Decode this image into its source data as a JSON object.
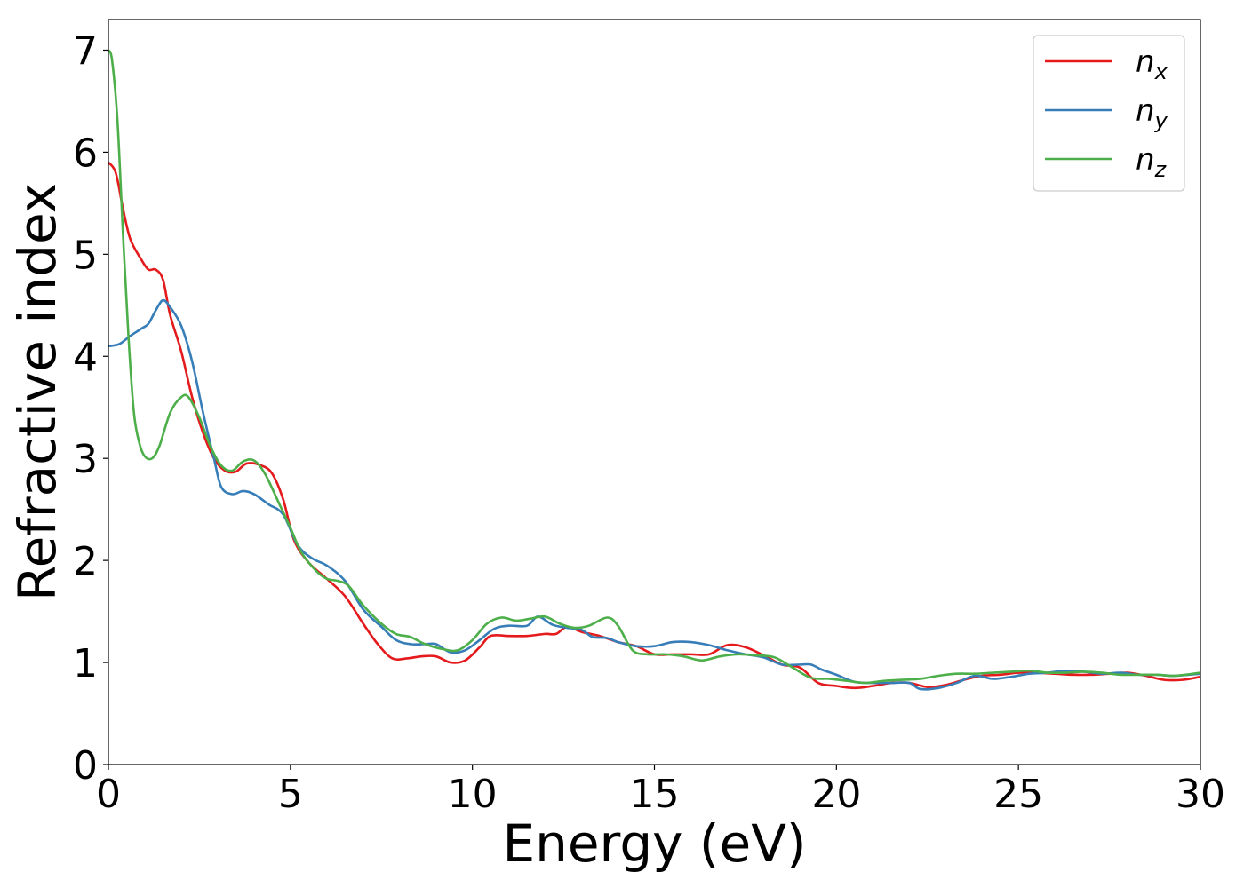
{
  "chart_data": {
    "type": "line",
    "xlabel": "Energy (eV)",
    "ylabel": "Refractive index",
    "xlim": [
      0,
      30
    ],
    "ylim": [
      0,
      7.3
    ],
    "xticks": [
      0,
      5,
      10,
      15,
      20,
      25,
      30
    ],
    "yticks": [
      0,
      1,
      2,
      3,
      4,
      5,
      6,
      7
    ],
    "grid": false,
    "legend_position": "top-right",
    "series": [
      {
        "name": "n_x",
        "label_base": "n",
        "label_sub": "x",
        "color": "#e41a1c",
        "points": [
          [
            0,
            5.9
          ],
          [
            0.2,
            5.8
          ],
          [
            0.4,
            5.45
          ],
          [
            0.6,
            5.15
          ],
          [
            0.9,
            4.95
          ],
          [
            1.1,
            4.85
          ],
          [
            1.3,
            4.85
          ],
          [
            1.5,
            4.75
          ],
          [
            1.7,
            4.4
          ],
          [
            2.0,
            4.05
          ],
          [
            2.3,
            3.6
          ],
          [
            2.6,
            3.25
          ],
          [
            2.9,
            3.0
          ],
          [
            3.2,
            2.88
          ],
          [
            3.5,
            2.87
          ],
          [
            3.8,
            2.95
          ],
          [
            4.2,
            2.93
          ],
          [
            4.5,
            2.85
          ],
          [
            4.8,
            2.6
          ],
          [
            5.1,
            2.2
          ],
          [
            5.5,
            1.98
          ],
          [
            6.0,
            1.82
          ],
          [
            6.5,
            1.65
          ],
          [
            7.0,
            1.38
          ],
          [
            7.4,
            1.18
          ],
          [
            7.8,
            1.04
          ],
          [
            8.2,
            1.04
          ],
          [
            8.6,
            1.06
          ],
          [
            9.0,
            1.06
          ],
          [
            9.4,
            1.0
          ],
          [
            9.8,
            1.02
          ],
          [
            10.2,
            1.15
          ],
          [
            10.5,
            1.26
          ],
          [
            11.0,
            1.26
          ],
          [
            11.5,
            1.26
          ],
          [
            12.0,
            1.28
          ],
          [
            12.3,
            1.28
          ],
          [
            12.6,
            1.35
          ],
          [
            13.0,
            1.3
          ],
          [
            13.5,
            1.26
          ],
          [
            14.0,
            1.2
          ],
          [
            14.5,
            1.16
          ],
          [
            15.0,
            1.08
          ],
          [
            15.5,
            1.08
          ],
          [
            16.0,
            1.08
          ],
          [
            16.5,
            1.08
          ],
          [
            17.0,
            1.17
          ],
          [
            17.5,
            1.15
          ],
          [
            18.0,
            1.07
          ],
          [
            18.5,
            0.98
          ],
          [
            19.0,
            0.95
          ],
          [
            19.5,
            0.8
          ],
          [
            20.0,
            0.77
          ],
          [
            20.5,
            0.75
          ],
          [
            21.0,
            0.77
          ],
          [
            21.5,
            0.8
          ],
          [
            22.0,
            0.8
          ],
          [
            22.5,
            0.76
          ],
          [
            23.0,
            0.78
          ],
          [
            23.5,
            0.83
          ],
          [
            24.0,
            0.87
          ],
          [
            24.5,
            0.88
          ],
          [
            25.0,
            0.9
          ],
          [
            25.5,
            0.9
          ],
          [
            26.0,
            0.89
          ],
          [
            26.5,
            0.88
          ],
          [
            27.0,
            0.88
          ],
          [
            27.5,
            0.89
          ],
          [
            28.0,
            0.9
          ],
          [
            28.5,
            0.87
          ],
          [
            29.0,
            0.83
          ],
          [
            29.5,
            0.83
          ],
          [
            30.0,
            0.86
          ]
        ]
      },
      {
        "name": "n_y",
        "label_base": "n",
        "label_sub": "y",
        "color": "#377eb8",
        "points": [
          [
            0,
            4.1
          ],
          [
            0.3,
            4.12
          ],
          [
            0.6,
            4.2
          ],
          [
            0.9,
            4.27
          ],
          [
            1.1,
            4.32
          ],
          [
            1.3,
            4.45
          ],
          [
            1.5,
            4.55
          ],
          [
            1.7,
            4.48
          ],
          [
            2.0,
            4.3
          ],
          [
            2.3,
            3.95
          ],
          [
            2.6,
            3.45
          ],
          [
            2.9,
            3.0
          ],
          [
            3.1,
            2.72
          ],
          [
            3.4,
            2.65
          ],
          [
            3.7,
            2.68
          ],
          [
            4.0,
            2.65
          ],
          [
            4.4,
            2.55
          ],
          [
            4.8,
            2.45
          ],
          [
            5.2,
            2.15
          ],
          [
            5.6,
            2.02
          ],
          [
            6.0,
            1.95
          ],
          [
            6.5,
            1.8
          ],
          [
            7.0,
            1.52
          ],
          [
            7.5,
            1.35
          ],
          [
            7.9,
            1.22
          ],
          [
            8.3,
            1.18
          ],
          [
            8.7,
            1.18
          ],
          [
            9.0,
            1.18
          ],
          [
            9.4,
            1.1
          ],
          [
            9.8,
            1.12
          ],
          [
            10.2,
            1.22
          ],
          [
            10.6,
            1.33
          ],
          [
            11.0,
            1.36
          ],
          [
            11.5,
            1.36
          ],
          [
            11.8,
            1.45
          ],
          [
            12.2,
            1.37
          ],
          [
            12.6,
            1.34
          ],
          [
            13.0,
            1.32
          ],
          [
            13.3,
            1.25
          ],
          [
            13.7,
            1.24
          ],
          [
            14.0,
            1.2
          ],
          [
            14.5,
            1.16
          ],
          [
            15.0,
            1.16
          ],
          [
            15.5,
            1.2
          ],
          [
            16.0,
            1.2
          ],
          [
            16.5,
            1.17
          ],
          [
            17.0,
            1.12
          ],
          [
            17.5,
            1.08
          ],
          [
            18.0,
            1.05
          ],
          [
            18.5,
            0.98
          ],
          [
            19.0,
            0.98
          ],
          [
            19.3,
            0.98
          ],
          [
            19.6,
            0.93
          ],
          [
            20.0,
            0.88
          ],
          [
            20.5,
            0.81
          ],
          [
            21.0,
            0.8
          ],
          [
            21.5,
            0.8
          ],
          [
            22.0,
            0.8
          ],
          [
            22.3,
            0.74
          ],
          [
            22.8,
            0.75
          ],
          [
            23.3,
            0.8
          ],
          [
            23.8,
            0.87
          ],
          [
            24.3,
            0.84
          ],
          [
            24.8,
            0.86
          ],
          [
            25.3,
            0.89
          ],
          [
            25.8,
            0.9
          ],
          [
            26.3,
            0.92
          ],
          [
            26.8,
            0.91
          ],
          [
            27.3,
            0.89
          ],
          [
            27.8,
            0.9
          ],
          [
            28.3,
            0.88
          ],
          [
            28.8,
            0.88
          ],
          [
            29.3,
            0.87
          ],
          [
            30.0,
            0.89
          ]
        ]
      },
      {
        "name": "n_z",
        "label_base": "n",
        "label_sub": "z",
        "color": "#4daf4a",
        "points": [
          [
            0,
            7.0
          ],
          [
            0.1,
            6.9
          ],
          [
            0.25,
            6.3
          ],
          [
            0.4,
            5.2
          ],
          [
            0.55,
            4.2
          ],
          [
            0.7,
            3.45
          ],
          [
            0.85,
            3.15
          ],
          [
            1.0,
            3.02
          ],
          [
            1.2,
            3.0
          ],
          [
            1.4,
            3.12
          ],
          [
            1.7,
            3.45
          ],
          [
            2.0,
            3.6
          ],
          [
            2.2,
            3.6
          ],
          [
            2.5,
            3.4
          ],
          [
            2.8,
            3.12
          ],
          [
            3.1,
            2.93
          ],
          [
            3.4,
            2.88
          ],
          [
            3.7,
            2.97
          ],
          [
            4.0,
            2.98
          ],
          [
            4.3,
            2.85
          ],
          [
            4.7,
            2.55
          ],
          [
            5.0,
            2.32
          ],
          [
            5.3,
            2.08
          ],
          [
            5.7,
            1.9
          ],
          [
            6.0,
            1.82
          ],
          [
            6.3,
            1.8
          ],
          [
            6.6,
            1.75
          ],
          [
            7.0,
            1.56
          ],
          [
            7.5,
            1.38
          ],
          [
            7.9,
            1.28
          ],
          [
            8.3,
            1.25
          ],
          [
            8.7,
            1.18
          ],
          [
            9.2,
            1.13
          ],
          [
            9.6,
            1.12
          ],
          [
            10.0,
            1.22
          ],
          [
            10.4,
            1.38
          ],
          [
            10.8,
            1.44
          ],
          [
            11.2,
            1.41
          ],
          [
            11.6,
            1.43
          ],
          [
            12.0,
            1.45
          ],
          [
            12.4,
            1.38
          ],
          [
            12.8,
            1.34
          ],
          [
            13.2,
            1.36
          ],
          [
            13.7,
            1.44
          ],
          [
            14.0,
            1.36
          ],
          [
            14.4,
            1.12
          ],
          [
            14.8,
            1.08
          ],
          [
            15.3,
            1.08
          ],
          [
            15.8,
            1.06
          ],
          [
            16.3,
            1.02
          ],
          [
            16.8,
            1.06
          ],
          [
            17.3,
            1.08
          ],
          [
            17.8,
            1.07
          ],
          [
            18.3,
            1.05
          ],
          [
            18.8,
            0.95
          ],
          [
            19.3,
            0.85
          ],
          [
            19.8,
            0.84
          ],
          [
            20.3,
            0.82
          ],
          [
            20.8,
            0.8
          ],
          [
            21.3,
            0.82
          ],
          [
            21.8,
            0.83
          ],
          [
            22.3,
            0.84
          ],
          [
            22.8,
            0.87
          ],
          [
            23.3,
            0.89
          ],
          [
            23.8,
            0.89
          ],
          [
            24.3,
            0.9
          ],
          [
            24.8,
            0.91
          ],
          [
            25.3,
            0.92
          ],
          [
            25.8,
            0.9
          ],
          [
            26.3,
            0.9
          ],
          [
            26.8,
            0.91
          ],
          [
            27.3,
            0.9
          ],
          [
            27.8,
            0.88
          ],
          [
            28.3,
            0.88
          ],
          [
            28.8,
            0.88
          ],
          [
            29.3,
            0.87
          ],
          [
            30.0,
            0.9
          ]
        ]
      }
    ]
  }
}
